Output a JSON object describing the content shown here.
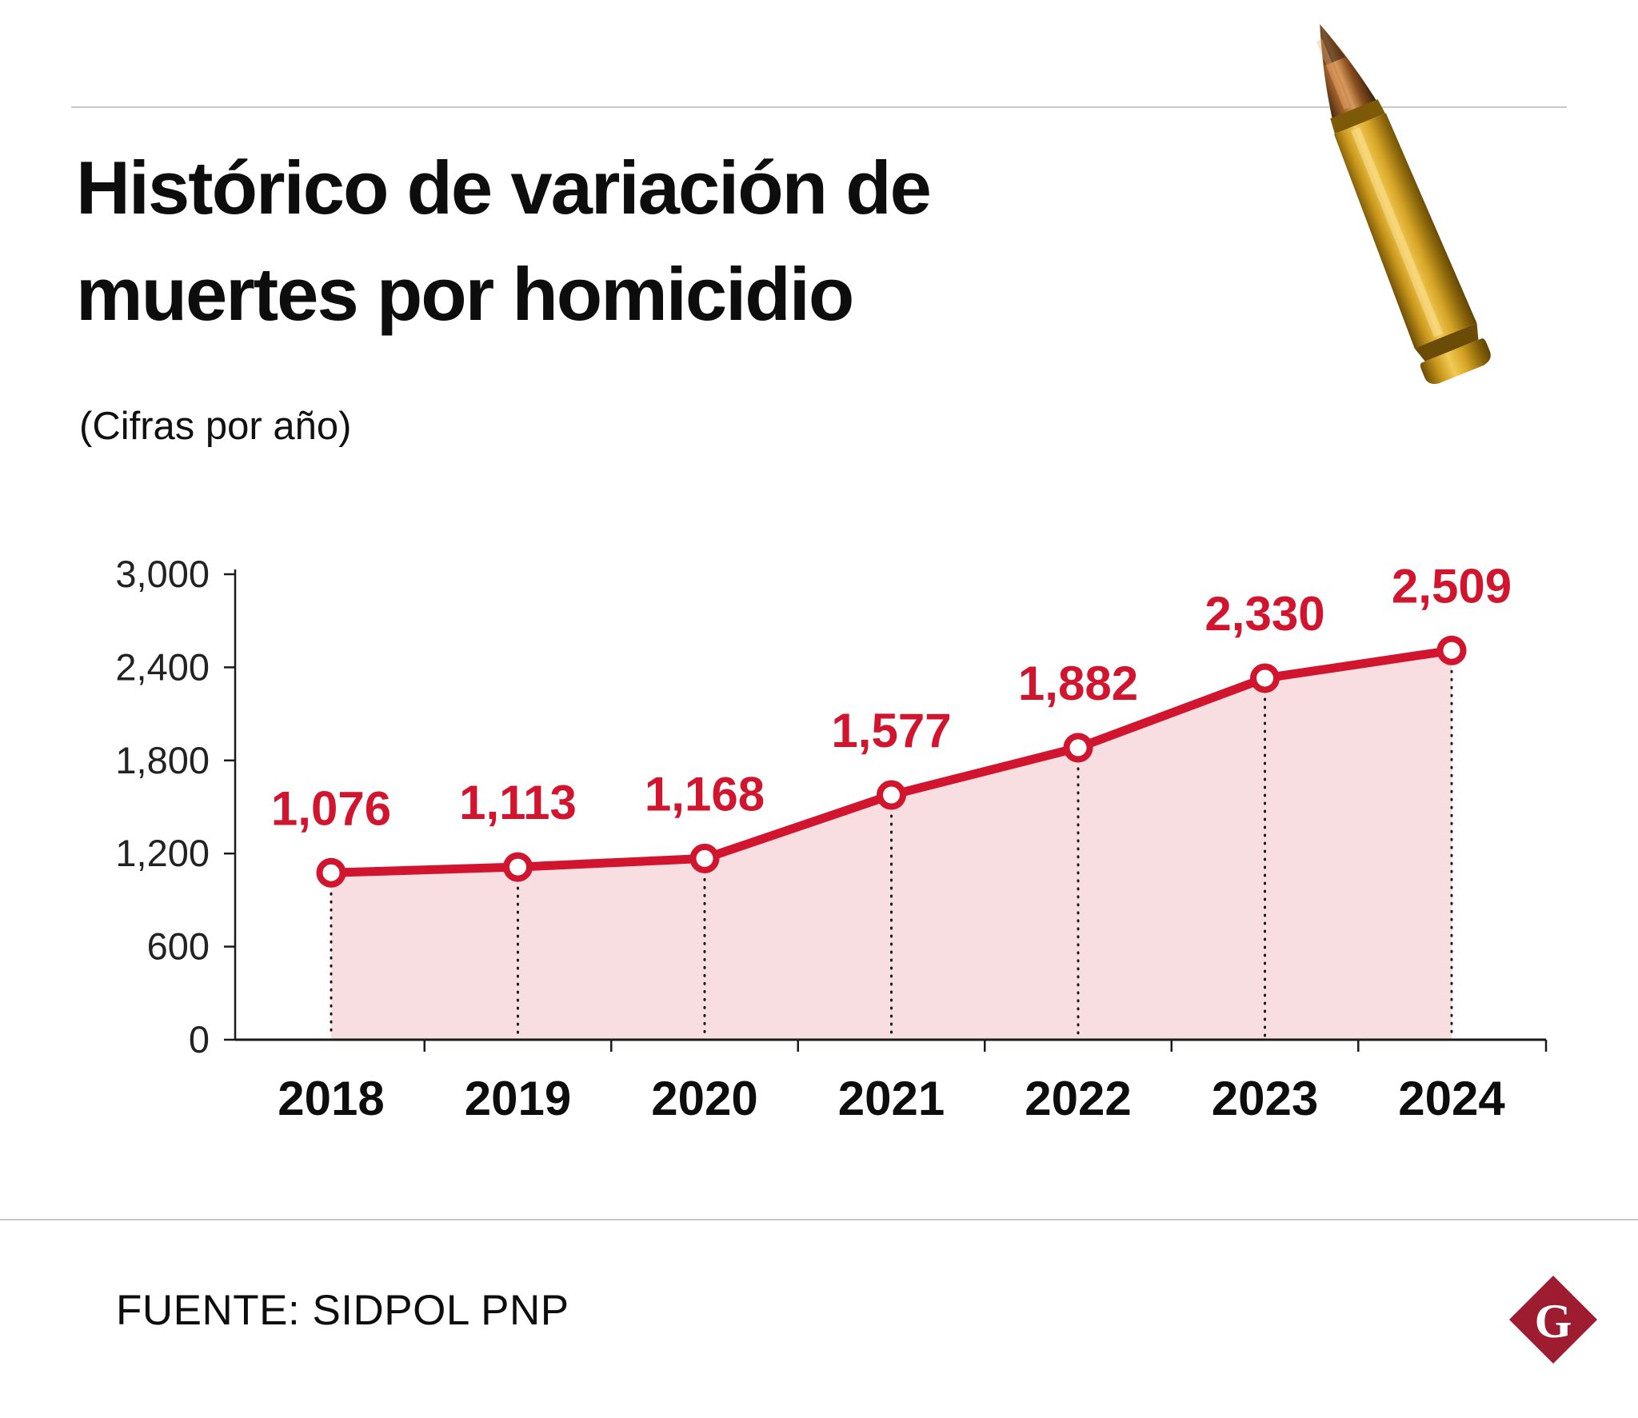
{
  "header": {
    "title_line1": "Histórico de variación de",
    "title_line2": "muertes por homicidio",
    "subtitle": "(Cifras por año)"
  },
  "footer": {
    "source": "FUENTE: SIDPOL PNP",
    "logo_letter": "G"
  },
  "icons": {
    "top_right_decoration": "bullet-cartridge",
    "brand_mark": "red-diamond-g-logo"
  },
  "colors": {
    "accent_red": "#d2152e",
    "area_pink": "#f8dde1",
    "axis": "#1a1a1a",
    "logo_maroon": "#9d1c30"
  },
  "chart_data": {
    "type": "line",
    "title": "Histórico de variación de muertes por homicidio",
    "subtitle": "(Cifras por año)",
    "categories": [
      "2018",
      "2019",
      "2020",
      "2021",
      "2022",
      "2023",
      "2024"
    ],
    "values": [
      1076,
      1113,
      1168,
      1577,
      1882,
      2330,
      2509
    ],
    "value_labels": [
      "1,076",
      "1,113",
      "1,168",
      "1,577",
      "1,882",
      "2,330",
      "2,509"
    ],
    "xlabel": "",
    "ylabel": "",
    "ylim": [
      0,
      3000
    ],
    "yticks": [
      0,
      600,
      1200,
      1800,
      2400,
      3000
    ],
    "ytick_labels": [
      "0",
      "600",
      "1,200",
      "1,800",
      "2,400",
      "3,000"
    ],
    "grid": false,
    "legend": false,
    "area_fill": true,
    "marker": "open-circle",
    "drop_lines": "dotted"
  }
}
